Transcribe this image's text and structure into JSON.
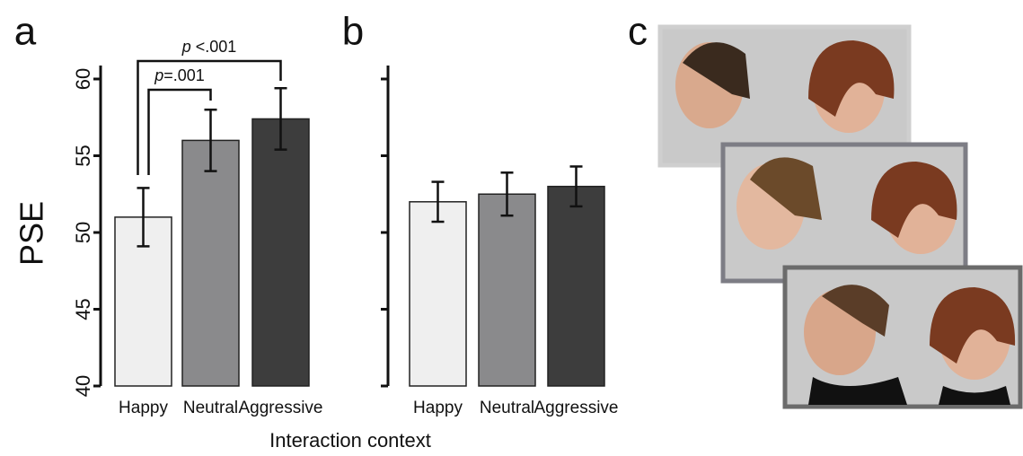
{
  "chart_data": [
    {
      "type": "bar",
      "panel": "a",
      "y_label": "PSE",
      "x_label": "Interaction context",
      "categories": [
        "Happy",
        "Neutral",
        "Aggressive"
      ],
      "values": [
        51,
        56,
        57.4
      ],
      "errors": [
        1.9,
        2,
        2
      ],
      "colors": [
        "#efefef",
        "#8a8a8c",
        "#3d3d3d"
      ],
      "ylim": [
        40,
        60
      ],
      "yticks": [
        40,
        45,
        50,
        55,
        60
      ],
      "annotations": [
        {
          "italic": "p",
          "text": "=.001",
          "from": 0,
          "to": 1
        },
        {
          "italic": "p",
          "text": " <.001",
          "from": 0,
          "to": 2
        }
      ]
    },
    {
      "type": "bar",
      "panel": "b",
      "categories": [
        "Happy",
        "Neutral",
        "Aggressive"
      ],
      "values": [
        52,
        52.5,
        53
      ],
      "errors": [
        1.3,
        1.4,
        1.3
      ],
      "colors": [
        "#efefef",
        "#8a8a8c",
        "#3d3d3d"
      ],
      "ylim": [
        40,
        60
      ]
    }
  ],
  "panel_c": {
    "label": "c"
  }
}
